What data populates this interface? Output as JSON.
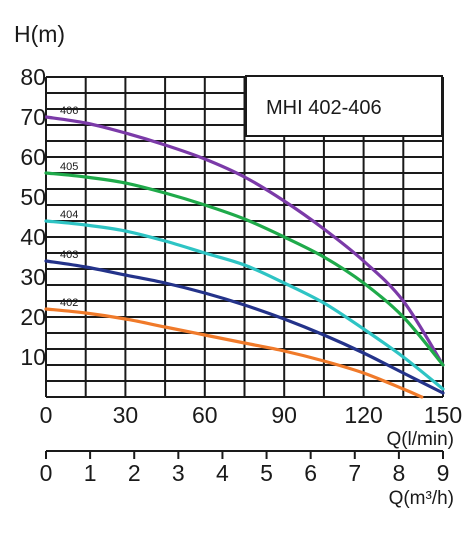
{
  "chart_data": {
    "type": "line",
    "title": "MHI 402-406",
    "ylabel": "H(m)",
    "xlabel": "Q(l/min)",
    "xlabel2": "Q(m³/h)",
    "xlim": [
      0,
      150
    ],
    "ylim": [
      0,
      80
    ],
    "x2lim": [
      0,
      9
    ],
    "yticks": [
      10,
      20,
      30,
      40,
      50,
      60,
      70,
      80
    ],
    "xticks": [
      0,
      30,
      60,
      90,
      120,
      150
    ],
    "x2ticks": [
      0,
      1,
      2,
      3,
      4,
      5,
      6,
      7,
      8,
      9
    ],
    "grid": true,
    "series": [
      {
        "name": "406",
        "color": "#7b3aa8",
        "x": [
          0,
          15,
          30,
          45,
          60,
          75,
          90,
          105,
          120,
          135,
          150
        ],
        "y": [
          70,
          68.5,
          66,
          63,
          59.5,
          55,
          49,
          42,
          34,
          24,
          8
        ]
      },
      {
        "name": "405",
        "color": "#1faa4a",
        "x": [
          0,
          15,
          30,
          45,
          60,
          75,
          90,
          105,
          120,
          135,
          150
        ],
        "y": [
          56,
          55,
          53.5,
          51,
          48,
          44.5,
          40,
          35,
          28.5,
          20,
          8
        ]
      },
      {
        "name": "404",
        "color": "#2ec4c4",
        "x": [
          0,
          15,
          30,
          45,
          60,
          75,
          90,
          105,
          120,
          135,
          150
        ],
        "y": [
          44,
          43,
          41.5,
          39,
          36,
          33,
          28.5,
          23.5,
          17,
          10,
          2
        ]
      },
      {
        "name": "403",
        "color": "#24338a",
        "x": [
          0,
          15,
          30,
          45,
          60,
          75,
          90,
          105,
          120,
          135,
          150
        ],
        "y": [
          34,
          32.5,
          30.5,
          28.5,
          26,
          23,
          19.5,
          15.5,
          11,
          6,
          1
        ]
      },
      {
        "name": "402",
        "color": "#f07a2a",
        "x": [
          0,
          15,
          30,
          45,
          60,
          75,
          90,
          105,
          120,
          135,
          142
        ],
        "y": [
          22,
          21,
          19.5,
          17.5,
          15.5,
          13.5,
          11.5,
          9,
          6,
          2,
          0
        ]
      }
    ]
  }
}
